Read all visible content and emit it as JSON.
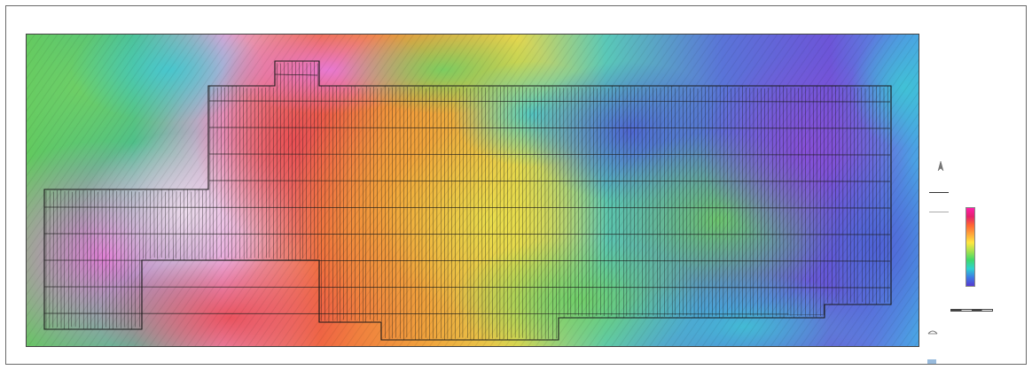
{
  "map": {
    "top_ticks": [
      "",
      "",
      "",
      "",
      "",
      "",
      "",
      "",
      "",
      "",
      "",
      "",
      "",
      "",
      "",
      "",
      "",
      "",
      "",
      "",
      ""
    ],
    "bottom_ticks": [
      "",
      "",
      "",
      "",
      "",
      "",
      "",
      "",
      "",
      "",
      "",
      "",
      "",
      "",
      "",
      "",
      "",
      "",
      "",
      "",
      ""
    ],
    "left_ticks": [
      "",
      "",
      "",
      "",
      "",
      "",
      "",
      ""
    ],
    "colors": {
      "magenta": "#e65acb",
      "red": "#e8544c",
      "orange": "#f2a33a",
      "yellow": "#e6d64a",
      "green": "#7fd065",
      "cyan": "#4ac8c9",
      "blue": "#5a6fd6",
      "violet": "#7a5ad9",
      "flight_line": "#1a1a1a"
    }
  },
  "legend": {
    "rows": [
      {
        "label": "",
        "value": ""
      },
      {
        "label": "",
        "value": ""
      },
      {
        "label": "",
        "value": ""
      },
      {
        "label": "",
        "value": ""
      },
      {
        "label": "",
        "value": ""
      },
      {
        "label": "",
        "value": ""
      },
      {
        "label": "",
        "value": ""
      },
      {
        "label": "",
        "value": ""
      }
    ],
    "line_label": "",
    "color_bar_ticks": [],
    "color_bar_caption": "",
    "scale_label": "",
    "company_name": "",
    "survey_title": "",
    "survey_line1": "",
    "survey_line2": "",
    "footer_text": ""
  }
}
